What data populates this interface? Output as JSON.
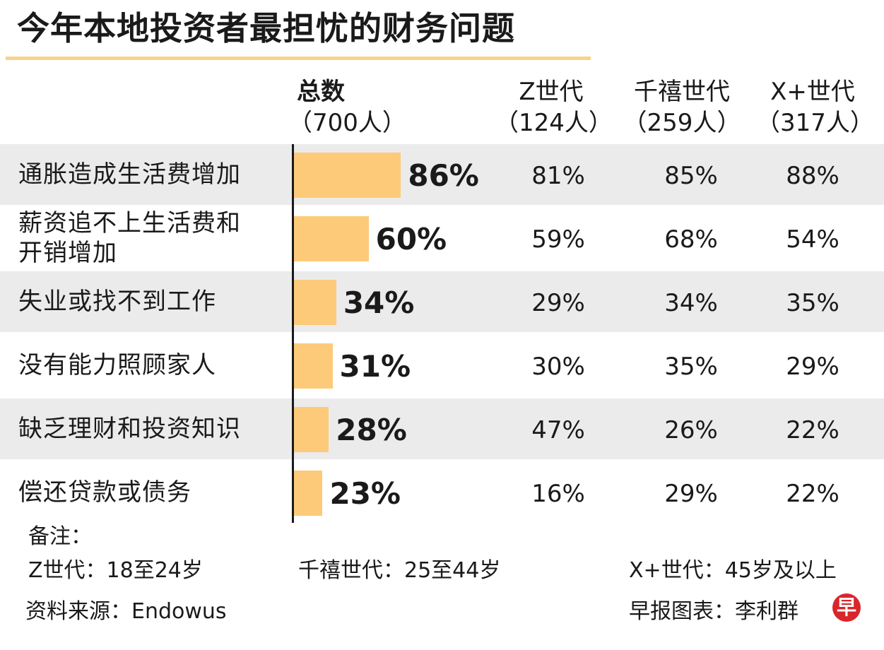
{
  "title": "今年本地投资者最担忧的财务问题",
  "headers": {
    "total": {
      "name": "总数",
      "count": "（700人）"
    },
    "z": {
      "name": "Z世代",
      "count": "（124人）"
    },
    "millennial": {
      "name": "千禧世代",
      "count": "（259人）"
    },
    "x": {
      "name": "X+世代",
      "count": "（317人）"
    }
  },
  "chart_data": {
    "type": "bar",
    "title": "今年本地投资者最担忧的财务问题",
    "categories": [
      [
        "通胀造成生活费增加"
      ],
      [
        "薪资追不上生活费和",
        "开销增加"
      ],
      [
        "失业或找不到工作"
      ],
      [
        "没有能力照顾家人"
      ],
      [
        "缺乏理财和投资知识"
      ],
      [
        "偿还贷款或债务"
      ]
    ],
    "unit": "%",
    "series": [
      {
        "name": "总数",
        "values": [
          86,
          60,
          34,
          31,
          28,
          23
        ]
      },
      {
        "name": "Z世代",
        "values": [
          81,
          59,
          29,
          30,
          47,
          16
        ]
      },
      {
        "name": "千禧世代",
        "values": [
          85,
          68,
          34,
          35,
          26,
          29
        ]
      },
      {
        "name": "X+世代",
        "values": [
          88,
          54,
          35,
          29,
          22,
          22
        ]
      }
    ]
  },
  "notes": {
    "heading": "备注：",
    "z": "Z世代：18至24岁",
    "millennial": "千禧世代：25至44岁",
    "x": "X+世代：45岁及以上"
  },
  "source": "资料来源：Endowus",
  "credit": "早报图表：李利群",
  "logo_glyph": "早",
  "colors": {
    "bar": "#fdca7a",
    "shade": "#ebebeb",
    "title_rule": "#f7d48a",
    "logo": "#d9262b"
  }
}
